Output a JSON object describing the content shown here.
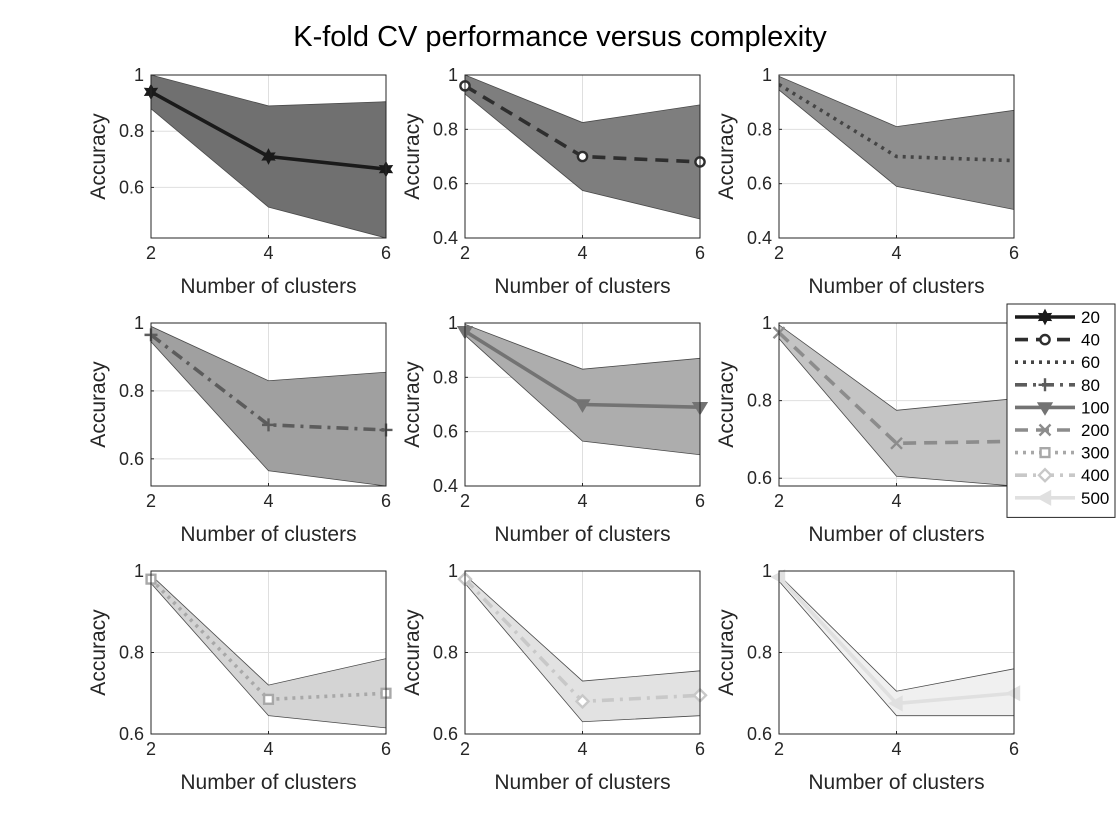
{
  "chart_data": {
    "type": "line",
    "title": "K-fold CV performance versus complexity",
    "x": [
      2,
      4,
      6
    ],
    "legend": {
      "location": "east",
      "entries": [
        "20",
        "40",
        "60",
        "80",
        "100",
        "200",
        "300",
        "400",
        "500"
      ]
    },
    "panels": [
      {
        "name": "20",
        "color": "#1a1a1a",
        "band_color": "#707070",
        "line_style": "solid",
        "marker": "hexagram",
        "xlabel": "Number of clusters",
        "ylabel": "Accuracy",
        "xlim": [
          2,
          6
        ],
        "ylim": [
          0.42,
          1.0
        ],
        "yticks": [
          0.6,
          0.8,
          1
        ],
        "xticks": [
          2,
          4,
          6
        ],
        "mean": [
          0.94,
          0.71,
          0.665
        ],
        "upper": [
          1.0,
          0.89,
          0.905
        ],
        "lower": [
          0.88,
          0.53,
          0.42
        ]
      },
      {
        "name": "40",
        "color": "#2e2e2e",
        "band_color": "#7e7e7e",
        "line_style": "dashed",
        "marker": "circle",
        "xlabel": "Number of clusters",
        "ylabel": "Accuracy",
        "xlim": [
          2,
          6
        ],
        "ylim": [
          0.4,
          1.0
        ],
        "yticks": [
          0.4,
          0.6,
          0.8,
          1
        ],
        "xticks": [
          2,
          4,
          6
        ],
        "mean": [
          0.96,
          0.7,
          0.68
        ],
        "upper": [
          1.0,
          0.825,
          0.89
        ],
        "lower": [
          0.93,
          0.575,
          0.47
        ]
      },
      {
        "name": "60",
        "color": "#454545",
        "band_color": "#8e8e8e",
        "line_style": "dotted",
        "marker": "none",
        "xlabel": "Number of clusters",
        "ylabel": "Accuracy",
        "xlim": [
          2,
          6
        ],
        "ylim": [
          0.4,
          1.0
        ],
        "yticks": [
          0.4,
          0.6,
          0.8,
          1
        ],
        "xticks": [
          2,
          4,
          6
        ],
        "mean": [
          0.965,
          0.7,
          0.685
        ],
        "upper": [
          0.995,
          0.81,
          0.87
        ],
        "lower": [
          0.945,
          0.59,
          0.505
        ]
      },
      {
        "name": "80",
        "color": "#5c5c5c",
        "band_color": "#a0a0a0",
        "line_style": "dashdot",
        "marker": "plus",
        "xlabel": "Number of clusters",
        "ylabel": "Accuracy",
        "xlim": [
          2,
          6
        ],
        "ylim": [
          0.52,
          1.0
        ],
        "yticks": [
          0.6,
          0.8,
          1
        ],
        "xticks": [
          2,
          4,
          6
        ],
        "mean": [
          0.965,
          0.7,
          0.685
        ],
        "upper": [
          0.99,
          0.83,
          0.855
        ],
        "lower": [
          0.945,
          0.565,
          0.52
        ]
      },
      {
        "name": "100",
        "color": "#737373",
        "band_color": "#adadad",
        "line_style": "solid",
        "marker": "triangle-down",
        "xlabel": "Number of clusters",
        "ylabel": "Accuracy",
        "xlim": [
          2,
          6
        ],
        "ylim": [
          0.4,
          1.0
        ],
        "yticks": [
          0.4,
          0.6,
          0.8,
          1
        ],
        "xticks": [
          2,
          4,
          6
        ],
        "mean": [
          0.97,
          0.7,
          0.69
        ],
        "upper": [
          0.995,
          0.83,
          0.87
        ],
        "lower": [
          0.955,
          0.565,
          0.515
        ]
      },
      {
        "name": "200",
        "color": "#8c8c8c",
        "band_color": "#c4c4c4",
        "line_style": "dashed",
        "marker": "x",
        "xlabel": "Number of clusters",
        "ylabel": "Accuracy",
        "xlim": [
          2,
          6
        ],
        "ylim": [
          0.58,
          1.0
        ],
        "yticks": [
          0.6,
          0.8,
          1
        ],
        "xticks": [
          2,
          4,
          6
        ],
        "mean": [
          0.975,
          0.69,
          0.695
        ],
        "upper": [
          0.995,
          0.775,
          0.805
        ],
        "lower": [
          0.96,
          0.605,
          0.58
        ]
      },
      {
        "name": "300",
        "color": "#a8a8a8",
        "band_color": "#d4d4d4",
        "line_style": "dotted",
        "marker": "square",
        "xlabel": "Number of clusters",
        "ylabel": "Accuracy",
        "xlim": [
          2,
          6
        ],
        "ylim": [
          0.6,
          1.0
        ],
        "yticks": [
          0.6,
          0.8,
          1
        ],
        "xticks": [
          2,
          4,
          6
        ],
        "mean": [
          0.98,
          0.685,
          0.7
        ],
        "upper": [
          0.99,
          0.72,
          0.785
        ],
        "lower": [
          0.97,
          0.645,
          0.615
        ]
      },
      {
        "name": "400",
        "color": "#c8c8c8",
        "band_color": "#e2e2e2",
        "line_style": "dashdot",
        "marker": "diamond",
        "xlabel": "Number of clusters",
        "ylabel": "Accuracy",
        "xlim": [
          2,
          6
        ],
        "ylim": [
          0.6,
          1.0
        ],
        "yticks": [
          0.6,
          0.8,
          1
        ],
        "xticks": [
          2,
          4,
          6
        ],
        "mean": [
          0.98,
          0.68,
          0.695
        ],
        "upper": [
          0.99,
          0.73,
          0.755
        ],
        "lower": [
          0.97,
          0.63,
          0.645
        ]
      },
      {
        "name": "500",
        "color": "#e0e0e0",
        "band_color": "#f0f0f0",
        "line_style": "solid",
        "marker": "triangle-left",
        "xlabel": "Number of clusters",
        "ylabel": "Accuracy",
        "xlim": [
          2,
          6
        ],
        "ylim": [
          0.6,
          1.0
        ],
        "yticks": [
          0.6,
          0.8,
          1
        ],
        "xticks": [
          2,
          4,
          6
        ],
        "mean": [
          0.985,
          0.675,
          0.7
        ],
        "upper": [
          0.99,
          0.705,
          0.76
        ],
        "lower": [
          0.975,
          0.645,
          0.645
        ]
      }
    ]
  }
}
